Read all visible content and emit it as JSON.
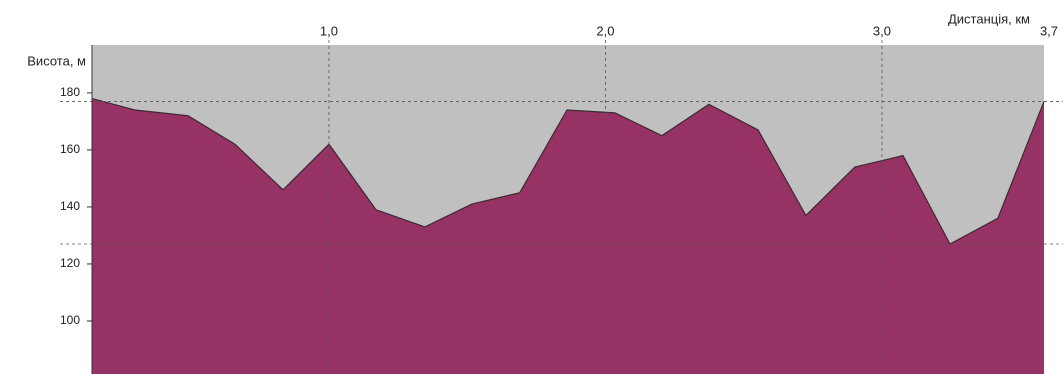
{
  "chart_data": {
    "type": "area",
    "x_label": "Дистанція, км",
    "y_label": "Висота, м",
    "x": [
      0.143,
      0.298,
      0.49,
      0.66,
      0.834,
      1.0,
      1.17,
      1.347,
      1.517,
      1.69,
      1.861,
      2.034,
      2.204,
      2.374,
      2.552,
      2.725,
      2.902,
      3.076,
      3.246,
      3.419,
      3.586
    ],
    "series": [
      {
        "color": "#963264",
        "values": [
          178,
          174,
          172,
          162,
          146,
          162,
          139,
          133,
          141,
          145,
          174,
          173,
          165,
          176,
          167,
          137,
          154,
          158,
          127,
          136,
          177
        ]
      }
    ],
    "xlim": [
      0.143,
      3.586
    ],
    "ylim": [
      81.4,
      196.8
    ],
    "xticks": [
      {
        "value": 1,
        "label": "1,0"
      },
      {
        "value": 2,
        "label": "2,0"
      },
      {
        "value": 3,
        "label": "3,0"
      },
      {
        "value": 3.7,
        "label": "3,7"
      }
    ],
    "yticks": [
      100,
      120,
      140,
      160,
      180
    ],
    "reference_lines": [
      177,
      127
    ],
    "background": "#c0c0c0",
    "line_color": "#3a2a33"
  }
}
